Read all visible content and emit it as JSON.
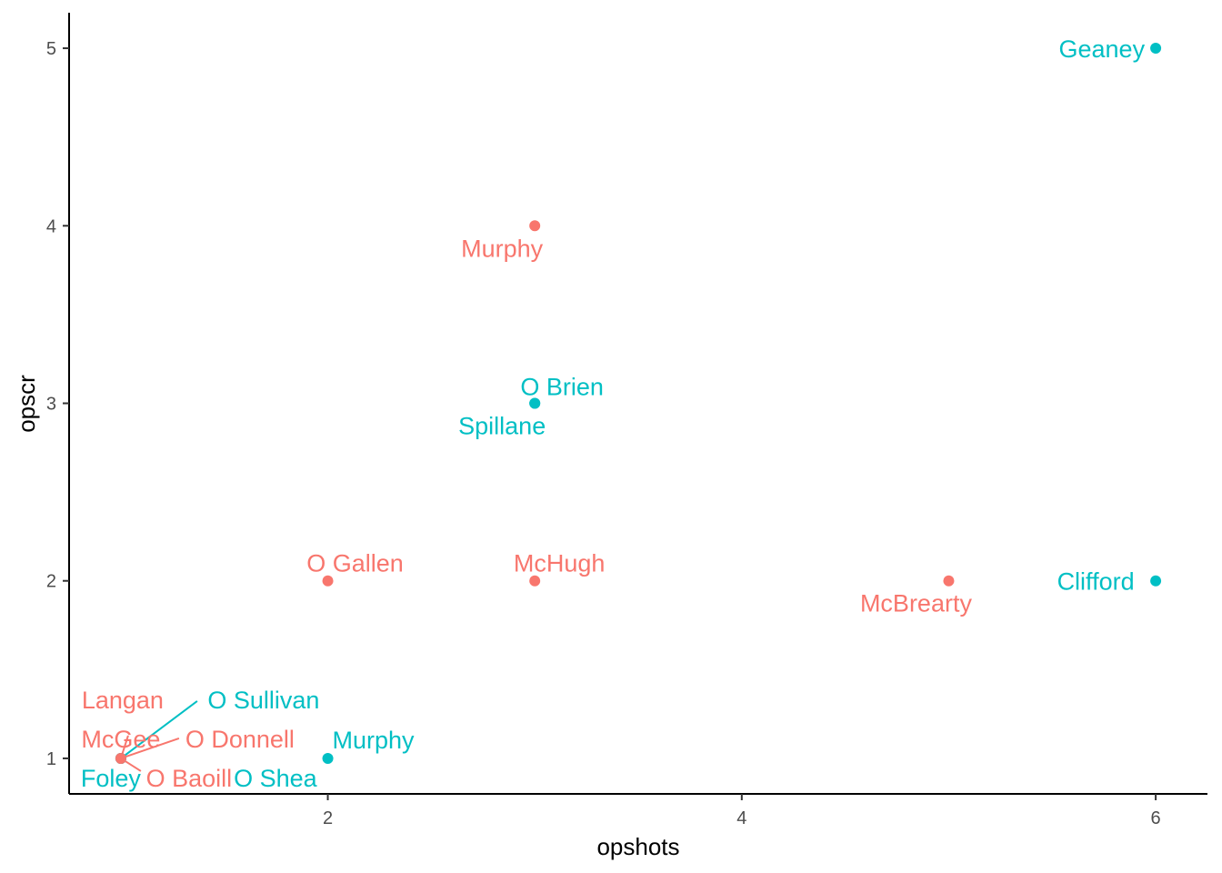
{
  "chart_data": {
    "type": "scatter",
    "title": "",
    "xlabel": "opshots",
    "ylabel": "opscr",
    "xlim": [
      0.75,
      6.25
    ],
    "ylim": [
      0.8,
      5.2
    ],
    "x_ticks": [
      2,
      4,
      6
    ],
    "y_ticks": [
      1,
      2,
      3,
      4,
      5
    ],
    "grid": false,
    "legend": "none",
    "colors": {
      "red": "#F8766D",
      "teal": "#00BFC4"
    },
    "points": [
      {
        "label": "Geaney",
        "x": 6,
        "y": 5,
        "group": "teal"
      },
      {
        "label": "Murphy",
        "x": 3,
        "y": 4,
        "group": "red"
      },
      {
        "label": "O Brien",
        "x": 3,
        "y": 3,
        "group": "teal"
      },
      {
        "label": "Spillane",
        "x": 3,
        "y": 3,
        "group": "teal"
      },
      {
        "label": "O Gallen",
        "x": 2,
        "y": 2,
        "group": "red"
      },
      {
        "label": "McHugh",
        "x": 3,
        "y": 2,
        "group": "red"
      },
      {
        "label": "McBrearty",
        "x": 5,
        "y": 2,
        "group": "red"
      },
      {
        "label": "Clifford",
        "x": 6,
        "y": 2,
        "group": "teal"
      },
      {
        "label": "Murphy",
        "x": 2,
        "y": 1,
        "group": "teal"
      },
      {
        "label": "O Shea",
        "x": 1,
        "y": 1,
        "group": "teal"
      },
      {
        "label": "Langan",
        "x": 1,
        "y": 1,
        "group": "red"
      },
      {
        "label": "O Sullivan",
        "x": 1,
        "y": 1,
        "group": "teal"
      },
      {
        "label": "McGee",
        "x": 1,
        "y": 1,
        "group": "red"
      },
      {
        "label": "O Donnell",
        "x": 1,
        "y": 1,
        "group": "red"
      },
      {
        "label": "Foley",
        "x": 1,
        "y": 1,
        "group": "teal"
      },
      {
        "label": "O Baoill",
        "x": 1,
        "y": 1,
        "group": "red"
      }
    ]
  }
}
